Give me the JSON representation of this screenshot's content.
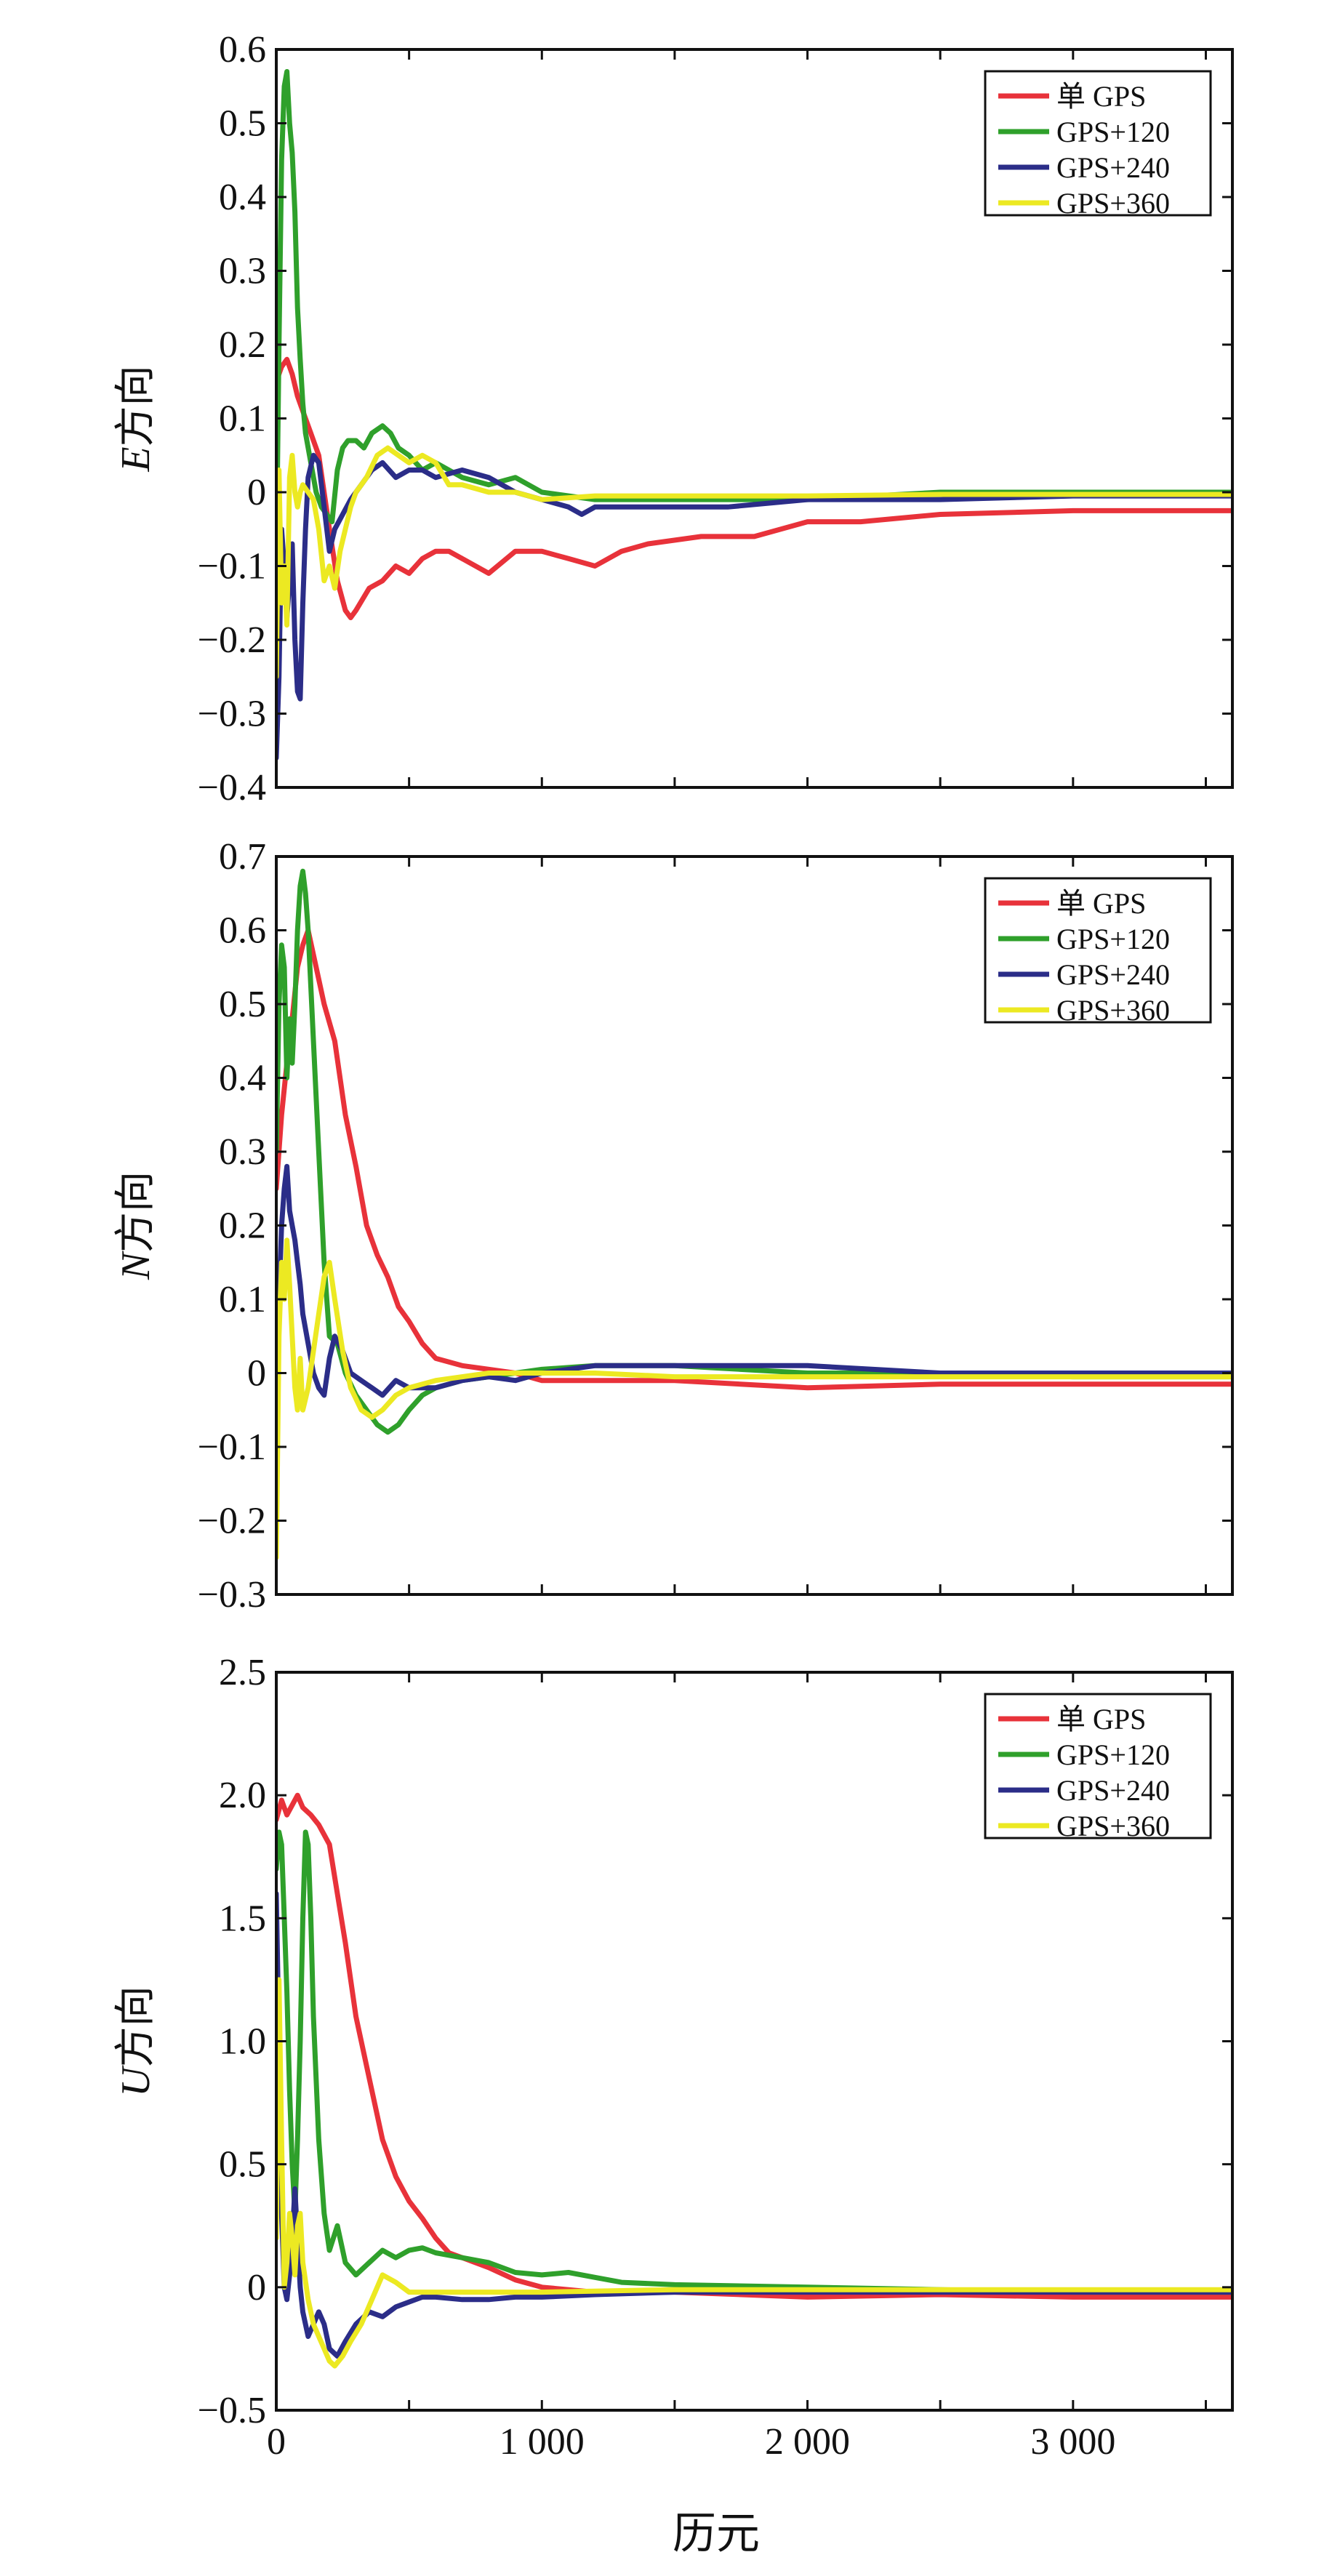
{
  "figure": {
    "xlabel": "历元"
  },
  "chart_data": [
    {
      "type": "line",
      "ylabel_var": "E",
      "ylabel_suffix": "方向",
      "xlim": [
        0,
        3600
      ],
      "ylim": [
        -0.4,
        0.6
      ],
      "xticks": [
        0,
        1000,
        2000,
        3000
      ],
      "xtick_labels": [
        "",
        "",
        "",
        ""
      ],
      "xminor": [
        500,
        1500,
        2500,
        3500
      ],
      "yticks": [
        -0.4,
        -0.3,
        -0.2,
        -0.1,
        0,
        0.1,
        0.2,
        0.3,
        0.4,
        0.5,
        0.6
      ],
      "ytick_labels": [
        "−0.4",
        "−0.3",
        "−0.2",
        "−0.1",
        "0",
        "0.1",
        "0.2",
        "0.3",
        "0.4",
        "0.5",
        "0.6"
      ],
      "legend_position": "top-right",
      "series": [
        {
          "name": "单 GPS",
          "color": "#e8323a",
          "x": [
            0,
            20,
            40,
            60,
            80,
            100,
            130,
            160,
            200,
            230,
            260,
            280,
            300,
            350,
            400,
            450,
            500,
            550,
            600,
            650,
            700,
            800,
            900,
            1000,
            1100,
            1200,
            1300,
            1400,
            1600,
            1800,
            2000,
            2200,
            2500,
            3000,
            3600
          ],
          "y": [
            0.15,
            0.17,
            0.18,
            0.16,
            0.13,
            0.11,
            0.08,
            0.05,
            -0.05,
            -0.12,
            -0.16,
            -0.17,
            -0.16,
            -0.13,
            -0.12,
            -0.1,
            -0.11,
            -0.09,
            -0.08,
            -0.08,
            -0.09,
            -0.11,
            -0.08,
            -0.08,
            -0.09,
            -0.1,
            -0.08,
            -0.07,
            -0.06,
            -0.06,
            -0.04,
            -0.04,
            -0.03,
            -0.025,
            -0.025
          ]
        },
        {
          "name": "GPS+120",
          "color": "#2fa02b",
          "x": [
            0,
            10,
            20,
            30,
            40,
            50,
            60,
            70,
            80,
            90,
            100,
            110,
            130,
            150,
            170,
            190,
            210,
            230,
            250,
            270,
            300,
            330,
            360,
            400,
            430,
            460,
            500,
            550,
            600,
            650,
            700,
            800,
            900,
            1000,
            1200,
            1500,
            2000,
            2500,
            3000,
            3600
          ],
          "y": [
            -0.1,
            0.2,
            0.45,
            0.55,
            0.57,
            0.5,
            0.46,
            0.38,
            0.25,
            0.18,
            0.12,
            0.08,
            0.04,
            0.0,
            -0.02,
            -0.03,
            -0.04,
            0.03,
            0.06,
            0.07,
            0.07,
            0.06,
            0.08,
            0.09,
            0.08,
            0.06,
            0.05,
            0.03,
            0.04,
            0.03,
            0.02,
            0.01,
            0.02,
            0.0,
            -0.01,
            -0.01,
            -0.01,
            0.0,
            0.0,
            0.0
          ]
        },
        {
          "name": "GPS+240",
          "color": "#2b2d88",
          "x": [
            0,
            10,
            20,
            30,
            40,
            50,
            60,
            70,
            80,
            90,
            100,
            110,
            120,
            140,
            160,
            180,
            200,
            220,
            250,
            280,
            320,
            360,
            400,
            450,
            500,
            550,
            600,
            700,
            800,
            900,
            1000,
            1100,
            1150,
            1200,
            1300,
            1500,
            1700,
            2000,
            2500,
            3000,
            3600
          ],
          "y": [
            -0.36,
            -0.25,
            -0.05,
            -0.1,
            -0.17,
            -0.12,
            -0.07,
            -0.2,
            -0.27,
            -0.28,
            -0.15,
            -0.05,
            0.02,
            0.05,
            0.04,
            -0.02,
            -0.08,
            -0.05,
            -0.03,
            -0.01,
            0.01,
            0.03,
            0.04,
            0.02,
            0.03,
            0.03,
            0.02,
            0.03,
            0.02,
            0.0,
            -0.01,
            -0.02,
            -0.03,
            -0.02,
            -0.02,
            -0.02,
            -0.02,
            -0.01,
            -0.01,
            -0.005,
            -0.005
          ]
        },
        {
          "name": "GPS+360",
          "color": "#ece922",
          "x": [
            0,
            10,
            20,
            30,
            40,
            50,
            60,
            70,
            80,
            90,
            100,
            120,
            140,
            160,
            180,
            200,
            220,
            240,
            260,
            280,
            300,
            340,
            380,
            420,
            460,
            500,
            550,
            600,
            650,
            700,
            800,
            900,
            1000,
            1200,
            1500,
            2000,
            2500,
            3000,
            3600
          ],
          "y": [
            -0.25,
            0.03,
            -0.15,
            -0.1,
            -0.18,
            0.02,
            0.05,
            0.0,
            -0.02,
            0.0,
            0.01,
            0.0,
            -0.01,
            -0.05,
            -0.12,
            -0.1,
            -0.13,
            -0.08,
            -0.05,
            -0.02,
            0.0,
            0.02,
            0.05,
            0.06,
            0.05,
            0.04,
            0.05,
            0.04,
            0.01,
            0.01,
            0.0,
            0.0,
            -0.01,
            -0.005,
            -0.005,
            -0.005,
            -0.003,
            -0.003,
            -0.003
          ]
        }
      ]
    },
    {
      "type": "line",
      "ylabel_var": "N",
      "ylabel_suffix": "方向",
      "xlim": [
        0,
        3600
      ],
      "ylim": [
        -0.3,
        0.7
      ],
      "xticks": [
        0,
        1000,
        2000,
        3000
      ],
      "xtick_labels": [
        "",
        "",
        "",
        ""
      ],
      "xminor": [
        500,
        1500,
        2500,
        3500
      ],
      "yticks": [
        -0.3,
        -0.2,
        -0.1,
        0,
        0.1,
        0.2,
        0.3,
        0.4,
        0.5,
        0.6,
        0.7
      ],
      "ytick_labels": [
        "−0.3",
        "−0.2",
        "−0.1",
        "0",
        "0.1",
        "0.2",
        "0.3",
        "0.4",
        "0.5",
        "0.6",
        "0.7"
      ],
      "legend_position": "top-right",
      "series": [
        {
          "name": "单 GPS",
          "color": "#e8323a",
          "x": [
            0,
            20,
            40,
            60,
            80,
            100,
            120,
            150,
            180,
            220,
            260,
            300,
            340,
            380,
            420,
            460,
            500,
            550,
            600,
            700,
            800,
            900,
            1000,
            1200,
            1500,
            2000,
            2500,
            3000,
            3600
          ],
          "y": [
            0.25,
            0.35,
            0.42,
            0.48,
            0.55,
            0.58,
            0.6,
            0.55,
            0.5,
            0.45,
            0.35,
            0.28,
            0.2,
            0.16,
            0.13,
            0.09,
            0.07,
            0.04,
            0.02,
            0.01,
            0.005,
            0.0,
            -0.01,
            -0.01,
            -0.01,
            -0.02,
            -0.015,
            -0.015,
            -0.015
          ]
        },
        {
          "name": "GPS+120",
          "color": "#2fa02b",
          "x": [
            0,
            10,
            20,
            30,
            40,
            50,
            60,
            70,
            80,
            90,
            100,
            110,
            120,
            140,
            160,
            180,
            200,
            230,
            260,
            300,
            340,
            380,
            420,
            460,
            500,
            550,
            600,
            700,
            800,
            900,
            1000,
            1200,
            1500,
            2000,
            2500,
            3000,
            3600
          ],
          "y": [
            0.3,
            0.5,
            0.58,
            0.55,
            0.4,
            0.48,
            0.42,
            0.5,
            0.6,
            0.66,
            0.68,
            0.65,
            0.6,
            0.45,
            0.3,
            0.15,
            0.05,
            0.04,
            0.0,
            -0.03,
            -0.05,
            -0.07,
            -0.08,
            -0.07,
            -0.05,
            -0.03,
            -0.02,
            -0.01,
            -0.005,
            0.0,
            0.005,
            0.01,
            0.01,
            0.0,
            0.0,
            -0.005,
            -0.005
          ]
        },
        {
          "name": "GPS+240",
          "color": "#2b2d88",
          "x": [
            0,
            10,
            20,
            30,
            40,
            50,
            60,
            70,
            80,
            90,
            100,
            120,
            140,
            160,
            180,
            200,
            220,
            250,
            280,
            320,
            360,
            400,
            450,
            500,
            600,
            700,
            800,
            900,
            1000,
            1200,
            1500,
            2000,
            2500,
            3000,
            3600
          ],
          "y": [
            -0.2,
            0.1,
            0.2,
            0.25,
            0.28,
            0.22,
            0.2,
            0.18,
            0.15,
            0.12,
            0.08,
            0.04,
            0.0,
            -0.02,
            -0.03,
            0.02,
            0.05,
            0.03,
            0.0,
            -0.01,
            -0.02,
            -0.03,
            -0.01,
            -0.02,
            -0.02,
            -0.01,
            -0.005,
            -0.01,
            0.0,
            0.01,
            0.01,
            0.01,
            0.0,
            0.0,
            0.0
          ]
        },
        {
          "name": "GPS+360",
          "color": "#ece922",
          "x": [
            0,
            10,
            20,
            30,
            40,
            50,
            60,
            70,
            80,
            90,
            100,
            120,
            140,
            160,
            180,
            200,
            220,
            250,
            280,
            320,
            360,
            400,
            450,
            500,
            600,
            700,
            800,
            900,
            1000,
            1200,
            1500,
            2000,
            2500,
            3000,
            3600
          ],
          "y": [
            -0.25,
            0.05,
            0.15,
            0.1,
            0.18,
            0.12,
            0.05,
            -0.02,
            -0.05,
            0.02,
            -0.05,
            -0.02,
            0.03,
            0.08,
            0.13,
            0.15,
            0.1,
            0.03,
            -0.02,
            -0.05,
            -0.06,
            -0.05,
            -0.03,
            -0.02,
            -0.01,
            -0.005,
            0.0,
            0.0,
            0.0,
            0.0,
            -0.005,
            -0.005,
            -0.005,
            -0.005,
            -0.005
          ]
        }
      ]
    },
    {
      "type": "line",
      "ylabel_var": "U",
      "ylabel_suffix": "方向",
      "xlim": [
        0,
        3600
      ],
      "ylim": [
        -0.5,
        2.5
      ],
      "xticks": [
        0,
        1000,
        2000,
        3000
      ],
      "xtick_labels": [
        "0",
        "1 000",
        "2 000",
        "3 000"
      ],
      "xminor": [
        500,
        1500,
        2500,
        3500
      ],
      "yticks": [
        -0.5,
        0,
        0.5,
        1.0,
        1.5,
        2.0,
        2.5
      ],
      "ytick_labels": [
        "−0.5",
        "0",
        "0.5",
        "1.0",
        "1.5",
        "2.0",
        "2.5"
      ],
      "legend_position": "top-right",
      "series": [
        {
          "name": "单 GPS",
          "color": "#e8323a",
          "x": [
            0,
            20,
            40,
            60,
            80,
            100,
            130,
            160,
            200,
            230,
            260,
            300,
            350,
            400,
            450,
            500,
            550,
            600,
            650,
            700,
            800,
            900,
            1000,
            1200,
            1500,
            2000,
            2500,
            3000,
            3600
          ],
          "y": [
            1.9,
            1.98,
            1.92,
            1.96,
            2.0,
            1.95,
            1.92,
            1.88,
            1.8,
            1.6,
            1.4,
            1.1,
            0.85,
            0.6,
            0.45,
            0.35,
            0.28,
            0.2,
            0.14,
            0.12,
            0.08,
            0.03,
            0.0,
            -0.02,
            -0.02,
            -0.04,
            -0.03,
            -0.04,
            -0.04
          ]
        },
        {
          "name": "GPS+120",
          "color": "#2fa02b",
          "x": [
            0,
            10,
            20,
            30,
            40,
            50,
            60,
            70,
            80,
            90,
            100,
            110,
            120,
            130,
            140,
            160,
            180,
            200,
            230,
            260,
            300,
            350,
            400,
            450,
            500,
            550,
            600,
            700,
            800,
            900,
            1000,
            1100,
            1200,
            1300,
            1500,
            2000,
            2500,
            3000,
            3600
          ],
          "y": [
            1.7,
            1.85,
            1.8,
            1.5,
            1.2,
            0.8,
            0.5,
            0.3,
            0.6,
            1.0,
            1.5,
            1.85,
            1.8,
            1.5,
            1.1,
            0.6,
            0.3,
            0.15,
            0.25,
            0.1,
            0.05,
            0.1,
            0.15,
            0.12,
            0.15,
            0.16,
            0.14,
            0.12,
            0.1,
            0.06,
            0.05,
            0.06,
            0.04,
            0.02,
            0.01,
            0.0,
            -0.01,
            -0.02,
            -0.02
          ]
        },
        {
          "name": "GPS+240",
          "color": "#2b2d88",
          "x": [
            0,
            10,
            20,
            30,
            40,
            50,
            60,
            70,
            80,
            90,
            100,
            120,
            140,
            160,
            180,
            200,
            230,
            260,
            300,
            350,
            400,
            450,
            500,
            550,
            600,
            700,
            800,
            900,
            1000,
            1200,
            1500,
            2000,
            2500,
            3000,
            3600
          ],
          "y": [
            1.6,
            1.0,
            0.3,
            0.0,
            -0.05,
            0.05,
            0.2,
            0.4,
            0.2,
            0.0,
            -0.1,
            -0.2,
            -0.15,
            -0.1,
            -0.15,
            -0.25,
            -0.28,
            -0.22,
            -0.15,
            -0.1,
            -0.12,
            -0.08,
            -0.06,
            -0.04,
            -0.04,
            -0.05,
            -0.05,
            -0.04,
            -0.04,
            -0.03,
            -0.02,
            -0.02,
            -0.02,
            -0.02,
            -0.02
          ]
        },
        {
          "name": "GPS+360",
          "color": "#ece922",
          "x": [
            0,
            10,
            20,
            30,
            40,
            50,
            60,
            70,
            80,
            90,
            100,
            120,
            140,
            160,
            180,
            200,
            220,
            250,
            280,
            320,
            360,
            400,
            450,
            500,
            600,
            800,
            1000,
            1500,
            2000,
            2500,
            3000,
            3600
          ],
          "y": [
            0.2,
            1.25,
            0.6,
            0.0,
            0.1,
            0.3,
            0.2,
            0.05,
            0.25,
            0.3,
            0.1,
            -0.05,
            -0.15,
            -0.2,
            -0.25,
            -0.3,
            -0.32,
            -0.28,
            -0.22,
            -0.15,
            -0.05,
            0.05,
            0.02,
            -0.02,
            -0.02,
            -0.02,
            -0.02,
            -0.01,
            -0.01,
            -0.01,
            -0.01,
            -0.01
          ]
        }
      ]
    }
  ]
}
